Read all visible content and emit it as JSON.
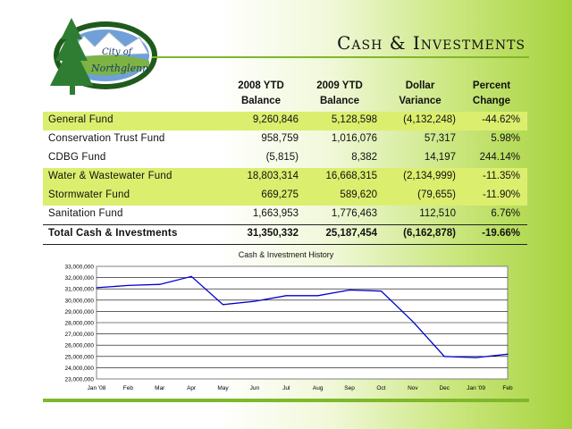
{
  "header": {
    "logo_text_1": "City of",
    "logo_text_2": "Northglenn",
    "title": "Cash & Investments"
  },
  "table": {
    "columns": [
      {
        "line1": "2008 YTD",
        "line2": "Balance"
      },
      {
        "line1": "2009 YTD",
        "line2": "Balance"
      },
      {
        "line1": "Dollar",
        "line2": "Variance"
      },
      {
        "line1": "Percent",
        "line2": "Change"
      }
    ],
    "rows": [
      {
        "name": "General Fund",
        "y2008": "9,260,846",
        "y2009": "5,128,598",
        "variance": "(4,132,248)",
        "pct": "-44.62%"
      },
      {
        "name": "Conservation Trust Fund",
        "y2008": "958,759",
        "y2009": "1,016,076",
        "variance": "57,317",
        "pct": "5.98%"
      },
      {
        "name": "CDBG Fund",
        "y2008": "(5,815)",
        "y2009": "8,382",
        "variance": "14,197",
        "pct": "244.14%"
      },
      {
        "name": "Water & Wastewater Fund",
        "y2008": "18,803,314",
        "y2009": "16,668,315",
        "variance": "(2,134,999)",
        "pct": "-11.35%"
      },
      {
        "name": "Stormwater Fund",
        "y2008": "669,275",
        "y2009": "589,620",
        "variance": "(79,655)",
        "pct": "-11.90%"
      },
      {
        "name": "Sanitation Fund",
        "y2008": "1,663,953",
        "y2009": "1,776,463",
        "variance": "112,510",
        "pct": "6.76%"
      }
    ],
    "total": {
      "name": "Total Cash & Investments",
      "y2008": "31,350,332",
      "y2009": "25,187,454",
      "variance": "(6,162,878)",
      "pct": "-19.66%"
    }
  },
  "chart_data": {
    "type": "line",
    "title": "Cash & Investment History",
    "categories": [
      "Jan '08",
      "Feb",
      "Mar",
      "Apr",
      "May",
      "Jun",
      "Jul",
      "Aug",
      "Sep",
      "Oct",
      "Nov",
      "Dec",
      "Jan '09",
      "Feb"
    ],
    "values": [
      31100000,
      31300000,
      31400000,
      32100000,
      29600000,
      29900000,
      30400000,
      30400000,
      30900000,
      30800000,
      28100000,
      25000000,
      24900000,
      25200000
    ],
    "yticks": [
      "23,000,000",
      "24,000,000",
      "25,000,000",
      "26,000,000",
      "27,000,000",
      "28,000,000",
      "29,000,000",
      "30,000,000",
      "31,000,000",
      "32,000,000",
      "33,000,000"
    ],
    "ylim": [
      23000000,
      33000000
    ],
    "grid": true,
    "line_color": "#0000cc"
  }
}
